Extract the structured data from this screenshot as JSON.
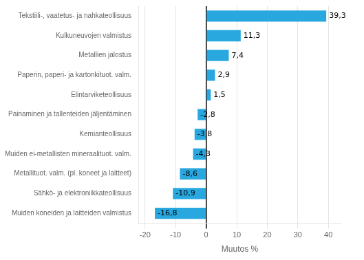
{
  "chart_data": {
    "type": "bar",
    "orientation": "horizontal",
    "categories": [
      "Muiden koneiden ja laitteiden valmistus",
      "Sähkö- ja elektroniikkateollisuus",
      "Metallituot. valm. (pl. koneet ja laitteet)",
      "Muiden ei-metallisten mineraalituot. valm.",
      "Kemianteollisuus",
      "Painaminen ja tallenteiden jäljentäminen",
      "Elintarviketeollisuus",
      "Paperin, paperi- ja kartonkituot. valm.",
      "Metallien jalostus",
      "Kulkuneuvojen valmistus",
      "Tekstiili-, vaatetus- ja nahkateollisuus"
    ],
    "values": [
      -16.8,
      -10.9,
      -8.6,
      -4.3,
      -3.8,
      -2.8,
      1.5,
      2.9,
      7.4,
      11.3,
      39.3
    ],
    "value_labels": [
      "-16,8",
      "-10,9",
      "-8,6",
      "-4,3",
      "-3,8",
      "-2,8",
      "1,5",
      "2,9",
      "7,4",
      "11,3",
      "39,3"
    ],
    "data_labels": true,
    "color": "#29a8e0",
    "xlabel": "Muutos %",
    "xlim": [
      -22,
      44
    ],
    "xticks": [
      -20,
      -10,
      0,
      10,
      20,
      30,
      40
    ],
    "grid": true
  }
}
